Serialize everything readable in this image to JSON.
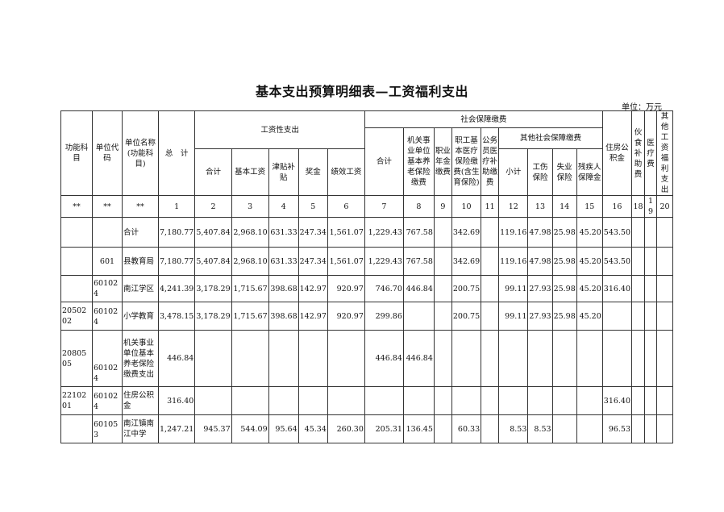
{
  "title": "基本支出预算明细表—工资福利支出",
  "unit": "单位：万元",
  "header": {
    "func": "功能科目",
    "code": "单位代码",
    "name": "单位名称(功能科目)",
    "total": "总　计",
    "wage_group": "工资性支出",
    "wage_cols": [
      "合计",
      "基本工资",
      "津贴补贴",
      "奖金",
      "绩效工资"
    ],
    "social_group": "社会保障缴费",
    "social_cols": [
      "合计",
      "机关事业单位基本养老保险缴费",
      "职业年金缴费",
      "职工基本医疗保险缴费(含生育保险)",
      "公务员医疗补助缴费"
    ],
    "other_social_group": "其他社会保障缴费",
    "other_social_cols": [
      "小计",
      "工伤保险",
      "失业保险",
      "残疾人保障金"
    ],
    "housing": "住房公积金",
    "meal": "伙食补助费",
    "medical": "医疗费",
    "other_welfare": "其他工资福利支出",
    "index_row": [
      "**",
      "**",
      "**",
      "1",
      "2",
      "3",
      "4",
      "5",
      "6",
      "7",
      "8",
      "9",
      "10",
      "11",
      "12",
      "13",
      "14",
      "15",
      "16",
      "18",
      "19",
      "20"
    ]
  },
  "rows": [
    [
      "",
      "",
      "合计",
      "7,180.77",
      "5,407.84",
      "2,968.10",
      "631.33",
      "247.34",
      "1,561.07",
      "1,229.43",
      "767.58",
      "",
      "342.69",
      "",
      "119.16",
      "47.98",
      "25.98",
      "45.20",
      "543.50",
      "",
      "",
      ""
    ],
    [
      "",
      "601",
      "县教育局",
      "7,180.77",
      "5,407.84",
      "2,968.10",
      "631.33",
      "247.34",
      "1,561.07",
      "1,229.43",
      "767.58",
      "",
      "342.69",
      "",
      "119.16",
      "47.98",
      "25.98",
      "45.20",
      "543.50",
      "",
      "",
      ""
    ],
    [
      "",
      "601024",
      "南江学区",
      "4,241.39",
      "3,178.29",
      "1,715.67",
      "398.68",
      "142.97",
      "920.97",
      "746.70",
      "446.84",
      "",
      "200.75",
      "",
      "99.11",
      "27.93",
      "25.98",
      "45.20",
      "316.40",
      "",
      "",
      ""
    ],
    [
      "2050202",
      "601024",
      "小学教育",
      "3,478.15",
      "3,178.29",
      "1,715.67",
      "398.68",
      "142.97",
      "920.97",
      "299.86",
      "",
      "",
      "200.75",
      "",
      "99.11",
      "27.93",
      "25.98",
      "45.20",
      "",
      "",
      "",
      ""
    ],
    [
      "2080505",
      "601024",
      "机关事业单位基本养老保险缴费支出",
      "446.84",
      "",
      "",
      "",
      "",
      "",
      "446.84",
      "446.84",
      "",
      "",
      "",
      "",
      "",
      "",
      "",
      "",
      "",
      "",
      ""
    ],
    [
      "2210201",
      "601024",
      "住房公积金",
      "316.40",
      "",
      "",
      "",
      "",
      "",
      "",
      "",
      "",
      "",
      "",
      "",
      "",
      "",
      "",
      "316.40",
      "",
      "",
      ""
    ],
    [
      "",
      "601053",
      "南江镇南江中学",
      "1,247.21",
      "945.37",
      "544.09",
      "95.64",
      "45.34",
      "260.30",
      "205.31",
      "136.45",
      "",
      "60.33",
      "",
      "8.53",
      "8.53",
      "",
      "",
      "96.53",
      "",
      "",
      ""
    ]
  ]
}
